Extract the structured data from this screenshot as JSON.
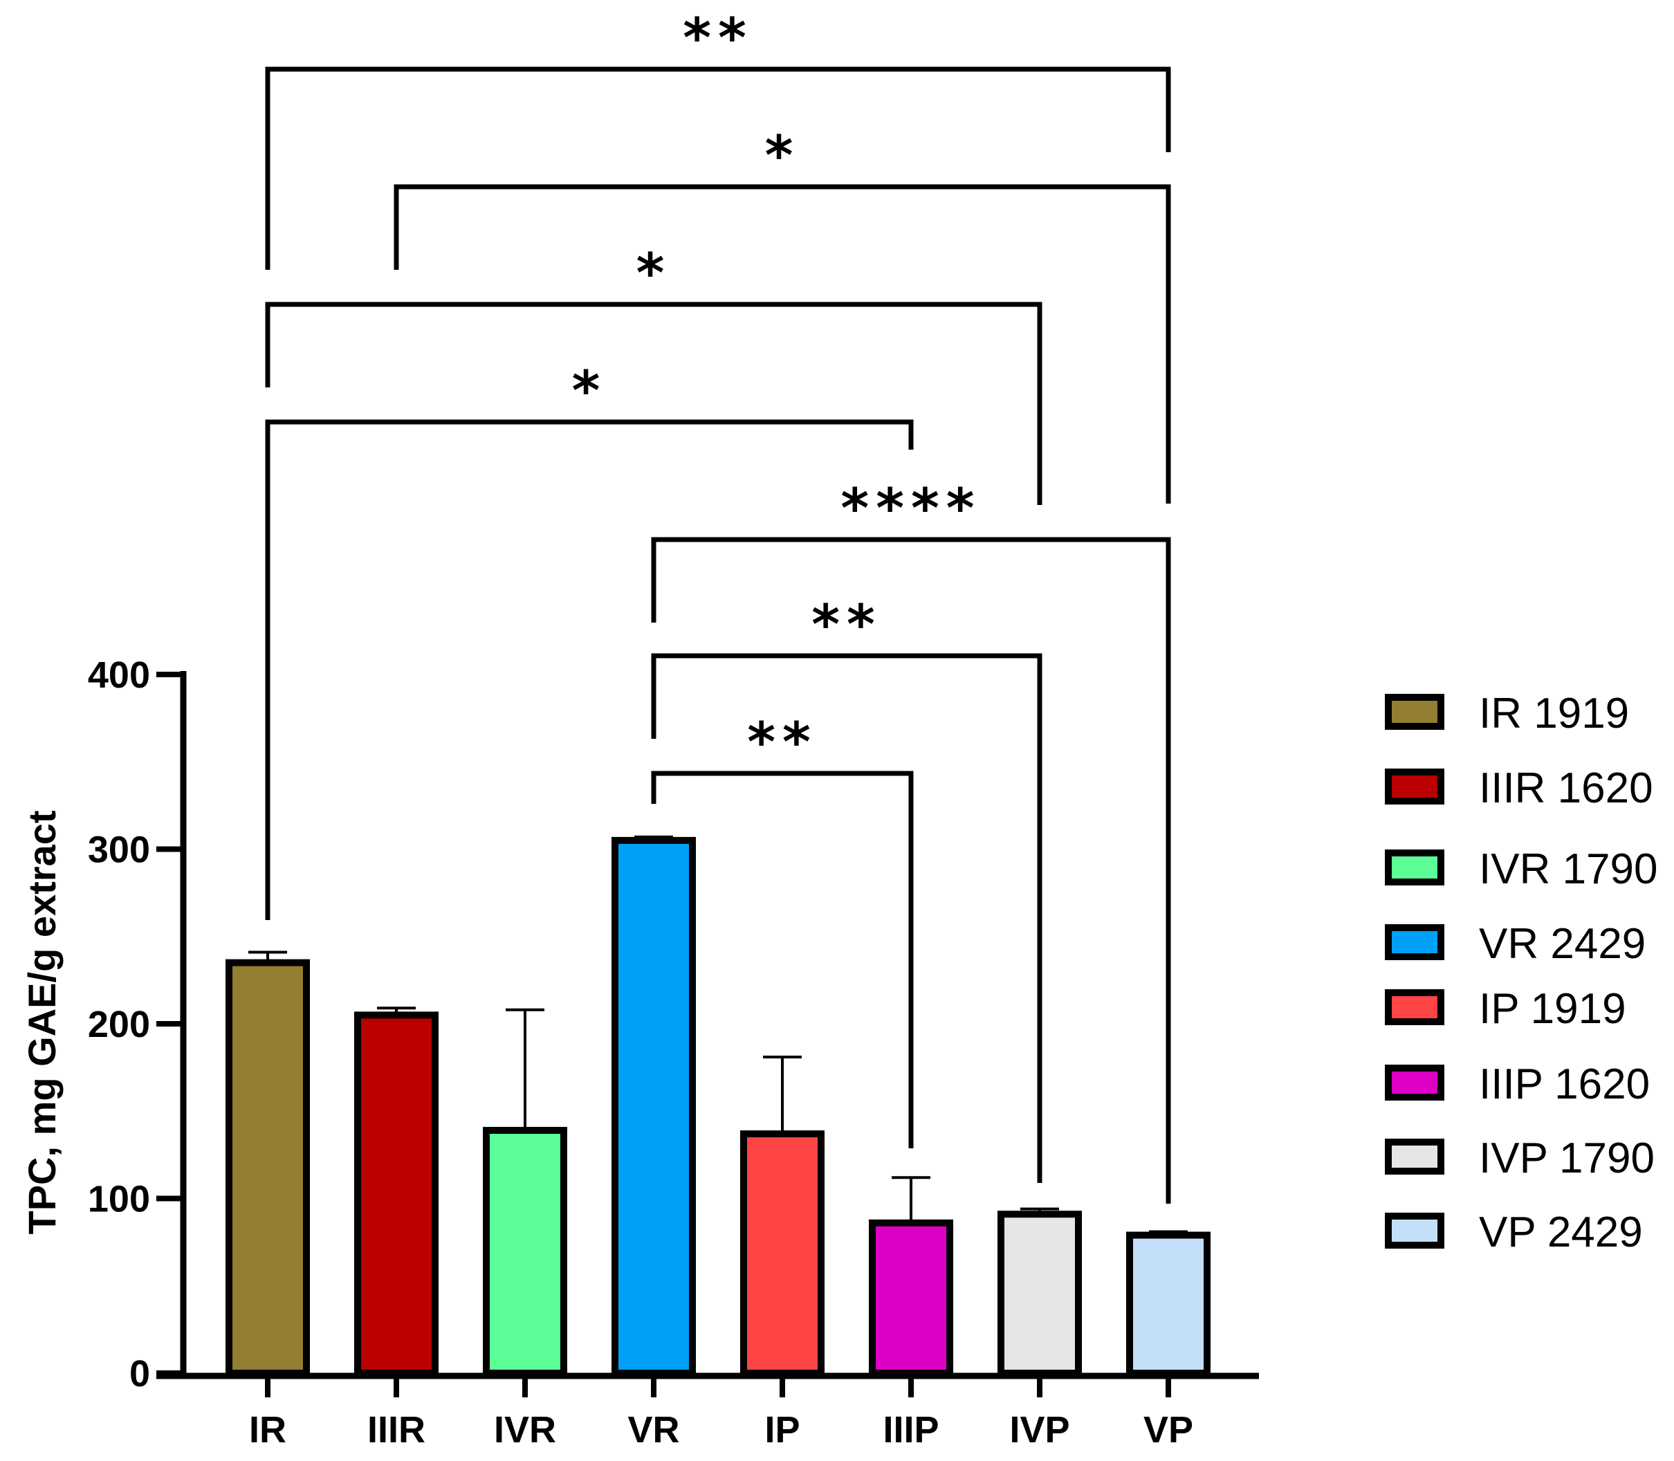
{
  "chart_data": {
    "type": "bar",
    "title": "",
    "xlabel": "",
    "ylabel": "TPC, mg GAE/g extract",
    "ylim": [
      0,
      400
    ],
    "yticks": [
      0,
      100,
      200,
      300,
      400
    ],
    "grid": false,
    "categories": [
      "IR",
      "IIIR",
      "IVR",
      "VR",
      "IP",
      "IIIP",
      "IVP",
      "VP"
    ],
    "values": [
      235,
      205,
      139,
      305,
      137,
      86,
      91,
      79
    ],
    "error_upper": [
      6,
      4,
      69,
      2,
      44,
      26,
      3,
      2
    ],
    "colors": [
      "#937E32",
      "#BA0000",
      "#5CFF97",
      "#00A0F8",
      "#FF4545",
      "#DD00C5",
      "#E6E6E6",
      "#C4DFFA"
    ],
    "legend_position": "right",
    "legend": [
      "IR 1919",
      "IIIR 1620",
      "IVR 1790",
      "VR 2429",
      "IP 1919",
      "IIIP 1620",
      "IVP 1790",
      "VP 2429"
    ],
    "significance": [
      {
        "from": "IR",
        "to": "VP",
        "label": "**"
      },
      {
        "from": "IIIR",
        "to": "VP",
        "label": "*"
      },
      {
        "from": "IR",
        "to": "IVP",
        "label": "*"
      },
      {
        "from": "IR",
        "to": "IIIP",
        "label": "*"
      },
      {
        "from": "VR",
        "to": "VP",
        "label": "****"
      },
      {
        "from": "VR",
        "to": "IVP",
        "label": "**"
      },
      {
        "from": "VR",
        "to": "IIIP",
        "label": "**"
      }
    ]
  }
}
